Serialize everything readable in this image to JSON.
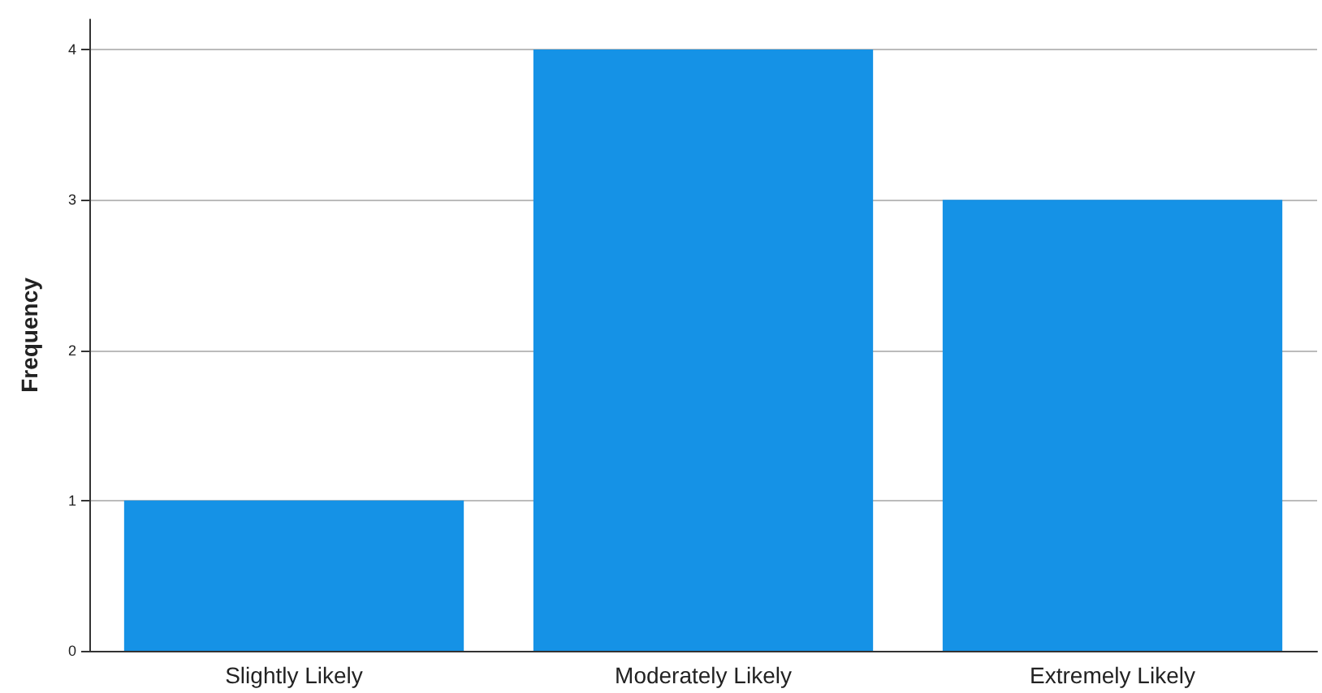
{
  "chart_data": {
    "type": "bar",
    "ylabel": "Frequency",
    "categories": [
      "Slightly Likely",
      "Moderately Likely",
      "Extremely Likely"
    ],
    "values": [
      1,
      4,
      3
    ],
    "color": "#1592e6",
    "ylim": [
      0,
      4.2
    ],
    "yticks": [
      0,
      1,
      2,
      3,
      4
    ],
    "grid": "y"
  }
}
